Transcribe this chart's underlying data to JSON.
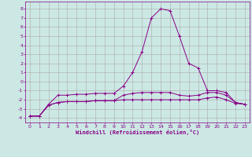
{
  "xlabel": "Windchill (Refroidissement éolien,°C)",
  "background_color": "#cce8e4",
  "grid_color": "#aaaaaa",
  "line_color": "#880088",
  "x_ticks": [
    0,
    1,
    2,
    3,
    4,
    5,
    6,
    7,
    8,
    9,
    10,
    11,
    12,
    13,
    14,
    15,
    16,
    17,
    18,
    19,
    20,
    21,
    22,
    23
  ],
  "y_ticks": [
    -4,
    -3,
    -2,
    -1,
    0,
    1,
    2,
    3,
    4,
    5,
    6,
    7,
    8
  ],
  "xlim": [
    -0.5,
    23.5
  ],
  "ylim": [
    -4.5,
    8.8
  ],
  "series": [
    {
      "x": [
        0,
        1,
        2,
        3,
        4,
        5,
        6,
        7,
        8,
        9,
        10,
        11,
        12,
        13,
        14,
        15,
        16,
        17,
        18,
        19,
        20,
        21,
        22,
        23
      ],
      "y": [
        -3.8,
        -3.8,
        -2.5,
        -1.5,
        -1.5,
        -1.4,
        -1.4,
        -1.3,
        -1.3,
        -1.3,
        -0.5,
        1.0,
        3.3,
        7.0,
        8.0,
        7.8,
        5.0,
        2.0,
        1.5,
        -1.0,
        -1.0,
        -1.2,
        -2.3,
        -2.5
      ]
    },
    {
      "x": [
        0,
        1,
        2,
        3,
        4,
        5,
        6,
        7,
        8,
        9,
        10,
        11,
        12,
        13,
        14,
        15,
        16,
        17,
        18,
        19,
        20,
        21,
        22,
        23
      ],
      "y": [
        -3.8,
        -3.8,
        -2.6,
        -2.3,
        -2.2,
        -2.2,
        -2.2,
        -2.1,
        -2.1,
        -2.1,
        -2.0,
        -2.0,
        -2.0,
        -2.0,
        -2.0,
        -2.0,
        -2.0,
        -2.0,
        -2.0,
        -1.8,
        -1.7,
        -2.0,
        -2.4,
        -2.5
      ]
    },
    {
      "x": [
        0,
        1,
        2,
        3,
        4,
        5,
        6,
        7,
        8,
        9,
        10,
        11,
        12,
        13,
        14,
        15,
        16,
        17,
        18,
        19,
        20,
        21,
        22,
        23
      ],
      "y": [
        -3.8,
        -3.8,
        -2.6,
        -2.3,
        -2.2,
        -2.2,
        -2.2,
        -2.1,
        -2.1,
        -2.1,
        -1.5,
        -1.3,
        -1.2,
        -1.2,
        -1.2,
        -1.2,
        -1.5,
        -1.6,
        -1.5,
        -1.2,
        -1.2,
        -1.5,
        -2.3,
        -2.5
      ]
    }
  ],
  "figsize": [
    3.2,
    2.0
  ],
  "dpi": 100
}
